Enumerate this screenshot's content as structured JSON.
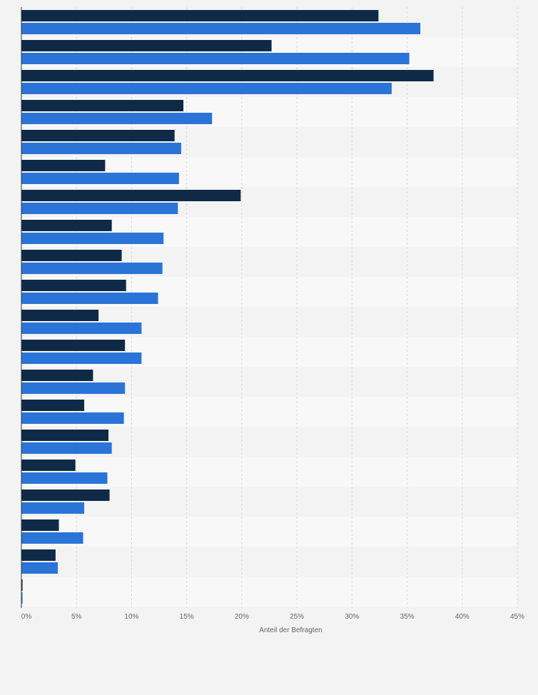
{
  "chart_data": {
    "type": "bar",
    "orientation": "horizontal",
    "categories": [
      "",
      "",
      "",
      "",
      "",
      "",
      "",
      "",
      "",
      "",
      "",
      "",
      "",
      "",
      "",
      "",
      "",
      "",
      "",
      ""
    ],
    "series": [
      {
        "color": "#0f2a47",
        "values": [
          32.4,
          22.7,
          37.4,
          14.7,
          13.9,
          7.6,
          19.9,
          8.2,
          9.1,
          9.5,
          7.0,
          9.4,
          6.5,
          5.7,
          7.9,
          4.9,
          8.0,
          3.4,
          3.1,
          0.1
        ]
      },
      {
        "color": "#2a74d8",
        "values": [
          36.2,
          35.2,
          33.6,
          17.3,
          14.5,
          14.3,
          14.2,
          12.9,
          12.8,
          12.4,
          10.9,
          10.9,
          9.4,
          9.3,
          8.2,
          7.8,
          5.7,
          5.6,
          3.3,
          0.1
        ]
      }
    ],
    "xlim": [
      0,
      45
    ],
    "x_ticks": [
      "0%",
      "5%",
      "10%",
      "15%",
      "20%",
      "25%",
      "30%",
      "35%",
      "40%",
      "45%"
    ],
    "xlabel": "Anteil der Befragten",
    "grid": true
  }
}
